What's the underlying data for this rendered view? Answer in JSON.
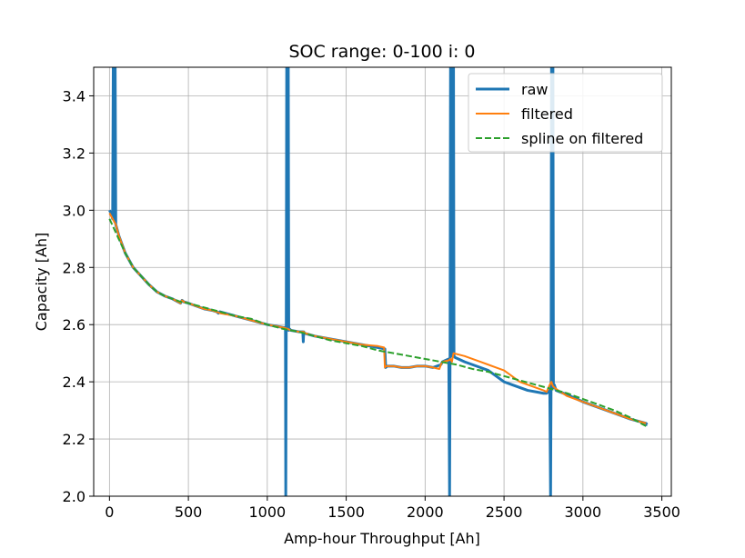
{
  "chart_data": {
    "type": "line",
    "title": "SOC range: 0-100 i: 0",
    "xlabel": "Amp-hour Throughput [Ah]",
    "ylabel": "Capacity [Ah]",
    "xlim": [
      -100,
      3560
    ],
    "ylim": [
      2.0,
      3.5
    ],
    "x_ticks": [
      0,
      500,
      1000,
      1500,
      2000,
      2500,
      3000,
      3500
    ],
    "y_ticks": [
      2.0,
      2.2,
      2.4,
      2.6,
      2.8,
      3.0,
      3.2,
      3.4
    ],
    "x_tick_labels": [
      "0",
      "500",
      "1000",
      "1500",
      "2000",
      "2500",
      "3000",
      "3500"
    ],
    "y_tick_labels": [
      "2.0",
      "2.2",
      "2.4",
      "2.6",
      "2.8",
      "3.0",
      "3.2",
      "3.4"
    ],
    "grid": true,
    "legend_position": "top-right",
    "series": [
      {
        "name": "raw",
        "color": "#1f77b4",
        "style": "solid",
        "x": [
          0,
          10,
          20,
          24,
          26,
          30,
          33,
          36,
          40,
          60,
          100,
          150,
          200,
          250,
          300,
          350,
          400,
          450,
          460,
          470,
          500,
          550,
          600,
          650,
          680,
          690,
          700,
          800,
          900,
          1000,
          1050,
          1100,
          1115,
          1117,
          1120,
          1123,
          1130,
          1133,
          1136,
          1140,
          1150,
          1200,
          1225,
          1228,
          1231,
          1235,
          1300,
          1400,
          1500,
          1600,
          1700,
          1745,
          1750,
          1760,
          1800,
          1850,
          1900,
          1950,
          2000,
          2050,
          2100,
          2110,
          2130,
          2150,
          2155,
          2158,
          2161,
          2165,
          2170,
          2176,
          2180,
          2183,
          2190,
          2250,
          2300,
          2350,
          2400,
          2450,
          2500,
          2550,
          2600,
          2650,
          2700,
          2750,
          2770,
          2790,
          2795,
          2798,
          2801,
          2805,
          2810,
          2813,
          2818,
          2830,
          2900,
          3000,
          3100,
          3200,
          3300,
          3400,
          3405,
          3407
        ],
        "y": [
          3.0,
          2.99,
          2.97,
          3.5,
          2.97,
          3.5,
          2.96,
          3.5,
          2.95,
          2.91,
          2.85,
          2.8,
          2.77,
          2.74,
          2.715,
          2.7,
          2.69,
          2.675,
          2.685,
          2.68,
          2.675,
          2.665,
          2.655,
          2.65,
          2.645,
          2.64,
          2.645,
          2.63,
          2.615,
          2.6,
          2.595,
          2.59,
          2.59,
          2.0,
          2.59,
          3.5,
          2.59,
          3.5,
          2.58,
          2.585,
          2.58,
          2.575,
          2.575,
          2.54,
          2.575,
          2.57,
          2.56,
          2.55,
          2.54,
          2.53,
          2.52,
          2.515,
          2.45,
          2.455,
          2.455,
          2.45,
          2.45,
          2.455,
          2.455,
          2.45,
          2.46,
          2.47,
          2.475,
          2.48,
          2.0,
          2.48,
          3.5,
          2.49,
          3.5,
          2.49,
          3.5,
          2.49,
          2.485,
          2.47,
          2.46,
          2.45,
          2.44,
          2.42,
          2.4,
          2.39,
          2.38,
          2.37,
          2.365,
          2.36,
          2.36,
          2.37,
          2.0,
          2.375,
          3.5,
          2.38,
          3.5,
          2.38,
          2.39,
          2.37,
          2.355,
          2.33,
          2.31,
          2.29,
          2.27,
          2.255,
          2.25,
          2.25
        ]
      },
      {
        "name": "filtered",
        "color": "#ff7f0e",
        "style": "solid",
        "x": [
          0,
          20,
          40,
          60,
          100,
          150,
          200,
          250,
          300,
          350,
          400,
          450,
          460,
          470,
          500,
          550,
          600,
          650,
          700,
          800,
          900,
          1000,
          1100,
          1130,
          1150,
          1200,
          1230,
          1240,
          1300,
          1400,
          1500,
          1600,
          1700,
          1740,
          1745,
          1750,
          1800,
          1850,
          1900,
          1950,
          2000,
          2050,
          2090,
          2100,
          2110,
          2150,
          2160,
          2170,
          2180,
          2250,
          2300,
          2350,
          2400,
          2450,
          2500,
          2550,
          2600,
          2650,
          2700,
          2750,
          2770,
          2790,
          2800,
          2810,
          2830,
          2900,
          3000,
          3100,
          3200,
          3300,
          3400
        ],
        "y": [
          2.99,
          2.97,
          2.95,
          2.91,
          2.85,
          2.8,
          2.77,
          2.74,
          2.715,
          2.7,
          2.69,
          2.675,
          2.685,
          2.68,
          2.675,
          2.665,
          2.655,
          2.65,
          2.64,
          2.63,
          2.615,
          2.6,
          2.59,
          2.585,
          2.58,
          2.575,
          2.575,
          2.57,
          2.56,
          2.55,
          2.54,
          2.53,
          2.525,
          2.52,
          2.45,
          2.455,
          2.455,
          2.45,
          2.45,
          2.455,
          2.455,
          2.45,
          2.445,
          2.46,
          2.47,
          2.475,
          2.48,
          2.47,
          2.5,
          2.49,
          2.48,
          2.47,
          2.46,
          2.45,
          2.44,
          2.42,
          2.4,
          2.39,
          2.38,
          2.37,
          2.365,
          2.39,
          2.4,
          2.385,
          2.375,
          2.35,
          2.33,
          2.31,
          2.29,
          2.27,
          2.255
        ]
      },
      {
        "name": "spline on filtered",
        "color": "#2ca02c",
        "style": "dashed",
        "x": [
          0,
          25,
          50,
          75,
          100,
          150,
          200,
          250,
          300,
          350,
          400,
          450,
          500,
          600,
          700,
          800,
          900,
          1000,
          1100,
          1200,
          1300,
          1400,
          1500,
          1600,
          1700,
          1800,
          1900,
          2000,
          2100,
          2200,
          2300,
          2400,
          2500,
          2600,
          2700,
          2800,
          2900,
          3000,
          3100,
          3200,
          3300,
          3400
        ],
        "y": [
          2.97,
          2.94,
          2.91,
          2.88,
          2.85,
          2.8,
          2.77,
          2.74,
          2.715,
          2.7,
          2.69,
          2.68,
          2.675,
          2.66,
          2.645,
          2.63,
          2.62,
          2.6,
          2.585,
          2.575,
          2.56,
          2.545,
          2.535,
          2.525,
          2.51,
          2.5,
          2.49,
          2.48,
          2.47,
          2.46,
          2.445,
          2.435,
          2.42,
          2.405,
          2.39,
          2.375,
          2.36,
          2.34,
          2.32,
          2.3,
          2.275,
          2.245
        ]
      }
    ]
  }
}
